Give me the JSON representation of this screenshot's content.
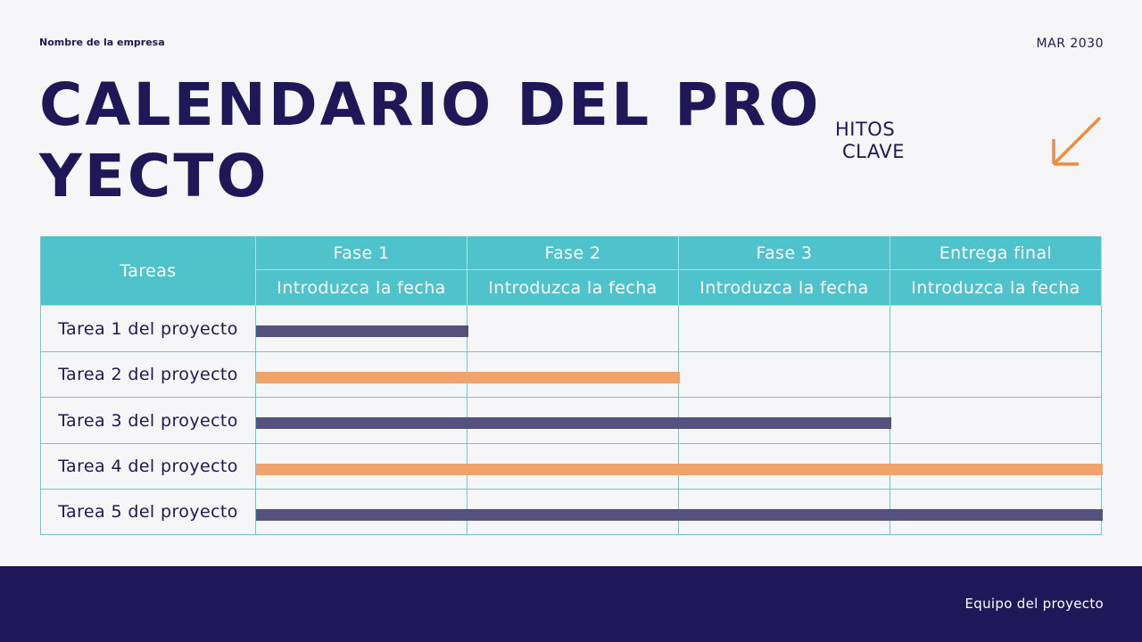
{
  "company": "Nombre de la empresa",
  "date": "MAR 2030",
  "title": "CALENDARIO DEL PROYECTO",
  "milestones_label": [
    "HITOS",
    "CLAVE"
  ],
  "icons": {
    "arrow": "arrow-down-left-icon"
  },
  "colors": {
    "navy": "#1f1758",
    "teal": "#4fc3cb",
    "purple_bar": "#56507f",
    "orange_bar": "#f0a46c",
    "arrow": "#ef8c3c"
  },
  "table": {
    "tasks_header": "Tareas",
    "phases": [
      {
        "name": "Fase 1",
        "date": "Introduzca la fecha"
      },
      {
        "name": "Fase 2",
        "date": "Introduzca la fecha"
      },
      {
        "name": "Fase 3",
        "date": "Introduzca la fecha"
      },
      {
        "name": "Entrega final",
        "date": "Introduzca la fecha"
      }
    ],
    "tasks": [
      {
        "name": "Tarea 1 del proyecto",
        "phases_spanned": 1,
        "color": "#56507f"
      },
      {
        "name": "Tarea 2 del proyecto",
        "phases_spanned": 2,
        "color": "#f0a46c"
      },
      {
        "name": "Tarea 3 del proyecto",
        "phases_spanned": 3,
        "color": "#56507f"
      },
      {
        "name": "Tarea 4 del proyecto",
        "phases_spanned": 4,
        "color": "#f0a46c"
      },
      {
        "name": "Tarea 5 del proyecto",
        "phases_spanned": 4,
        "color": "#56507f"
      }
    ]
  },
  "footer": "Equipo del proyecto"
}
